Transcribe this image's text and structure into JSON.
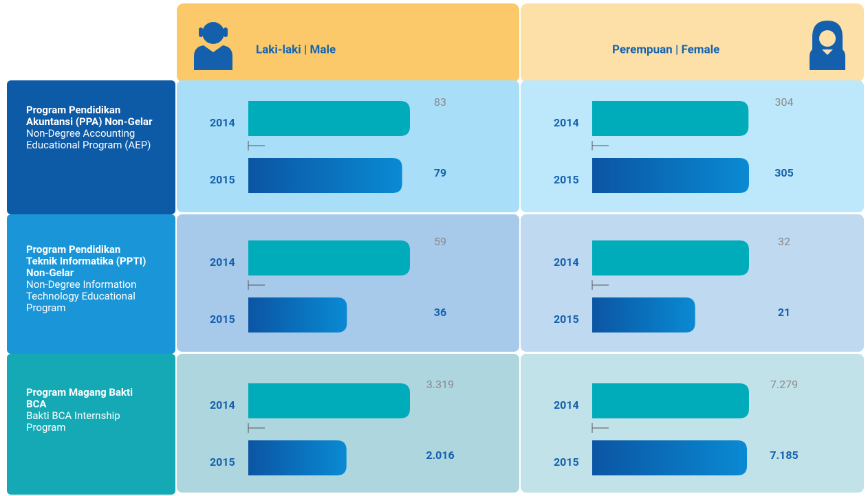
{
  "header": {
    "male": "Laki-laki | Male",
    "female": "Perempuan | Female"
  },
  "rows": [
    {
      "name_id": "Program Pendidikan Akuntansi (PPA) Non-Gelar",
      "name_en": "Non-Degree Accounting Educational Program (AEP)",
      "male": {
        "years": [
          "2014",
          "2015"
        ],
        "values": [
          83,
          79
        ]
      },
      "female": {
        "years": [
          "2014",
          "2015"
        ],
        "values": [
          304,
          305
        ]
      }
    },
    {
      "name_id": "Program Pendidikan Teknik Informatika (PPTI) Non-Gelar",
      "name_en": "Non-Degree Information Technology Educational Program",
      "male": {
        "years": [
          "2014",
          "2015"
        ],
        "values": [
          59,
          36
        ]
      },
      "female": {
        "years": [
          "2014",
          "2015"
        ],
        "values": [
          32,
          21
        ]
      }
    },
    {
      "name_id": "Program Magang Bakti BCA",
      "name_en": "Bakti BCA Internship Program",
      "male": {
        "years": [
          "2014",
          "2015"
        ],
        "values": [
          3319,
          2016
        ],
        "value_labels": [
          "3.319",
          "2.016"
        ]
      },
      "female": {
        "years": [
          "2014",
          "2015"
        ],
        "values": [
          7279,
          7185
        ],
        "value_labels": [
          "7.279",
          "7.185"
        ]
      }
    }
  ]
}
